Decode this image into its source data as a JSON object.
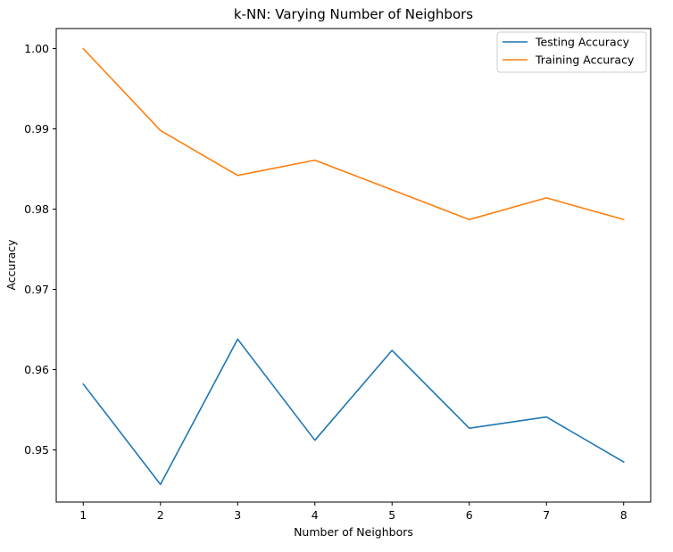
{
  "chart_data": {
    "type": "line",
    "title": "k-NN: Varying Number of Neighbors",
    "xlabel": "Number of Neighbors",
    "ylabel": "Accuracy",
    "x": [
      1,
      2,
      3,
      4,
      5,
      6,
      7,
      8
    ],
    "xlim": [
      0.65,
      8.35
    ],
    "ylim": [
      0.9435,
      1.0025
    ],
    "xticks": [
      1,
      2,
      3,
      4,
      5,
      6,
      7,
      8
    ],
    "yticks": [
      0.95,
      0.96,
      0.97,
      0.98,
      0.99,
      1.0
    ],
    "ytick_labels": [
      "0.95",
      "0.96",
      "0.97",
      "0.98",
      "0.99",
      "1.00"
    ],
    "grid": false,
    "legend_position": "top-right",
    "series": [
      {
        "name": "Testing Accuracy",
        "color": "#1f77b4",
        "values": [
          0.9582,
          0.9457,
          0.9638,
          0.9512,
          0.9624,
          0.9527,
          0.9541,
          0.9485
        ]
      },
      {
        "name": "Training Accuracy",
        "color": "#ff7f0e",
        "values": [
          1.0,
          0.9898,
          0.9842,
          0.9861,
          0.9824,
          0.9787,
          0.9814,
          0.9787
        ]
      }
    ]
  }
}
